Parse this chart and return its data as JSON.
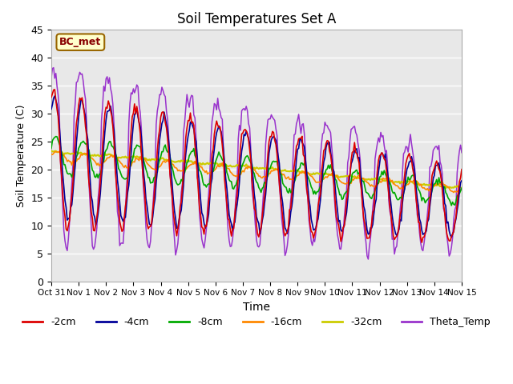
{
  "title": "Soil Temperatures Set A",
  "xlabel": "Time",
  "ylabel": "Soil Temperature (C)",
  "ylim": [
    0,
    45
  ],
  "background_color": "#ffffff",
  "plot_bg_color": "#e8e8e8",
  "grid_color": "#ffffff",
  "annotation_text": "BC_met",
  "annotation_bg": "#ffffcc",
  "annotation_border": "#996600",
  "series_colors": {
    "-2cm": "#dd0000",
    "-4cm": "#000099",
    "-8cm": "#00aa00",
    "-16cm": "#ff8800",
    "-32cm": "#cccc00",
    "Theta_Temp": "#9933cc"
  },
  "tick_labels": [
    "Oct 31",
    "Nov 1",
    "Nov 2",
    "Nov 3",
    "Nov 4",
    "Nov 5",
    "Nov 6",
    "Nov 7",
    "Nov 8",
    "Nov 9",
    "Nov 10",
    "Nov 11",
    "Nov 12",
    "Nov 13",
    "Nov 14",
    "Nov 15"
  ],
  "tick_positions": [
    0,
    24,
    48,
    72,
    96,
    120,
    144,
    168,
    192,
    216,
    240,
    264,
    288,
    312,
    336,
    360
  ],
  "yticks": [
    0,
    5,
    10,
    15,
    20,
    25,
    30,
    35,
    40,
    45
  ],
  "hours_total": 360
}
